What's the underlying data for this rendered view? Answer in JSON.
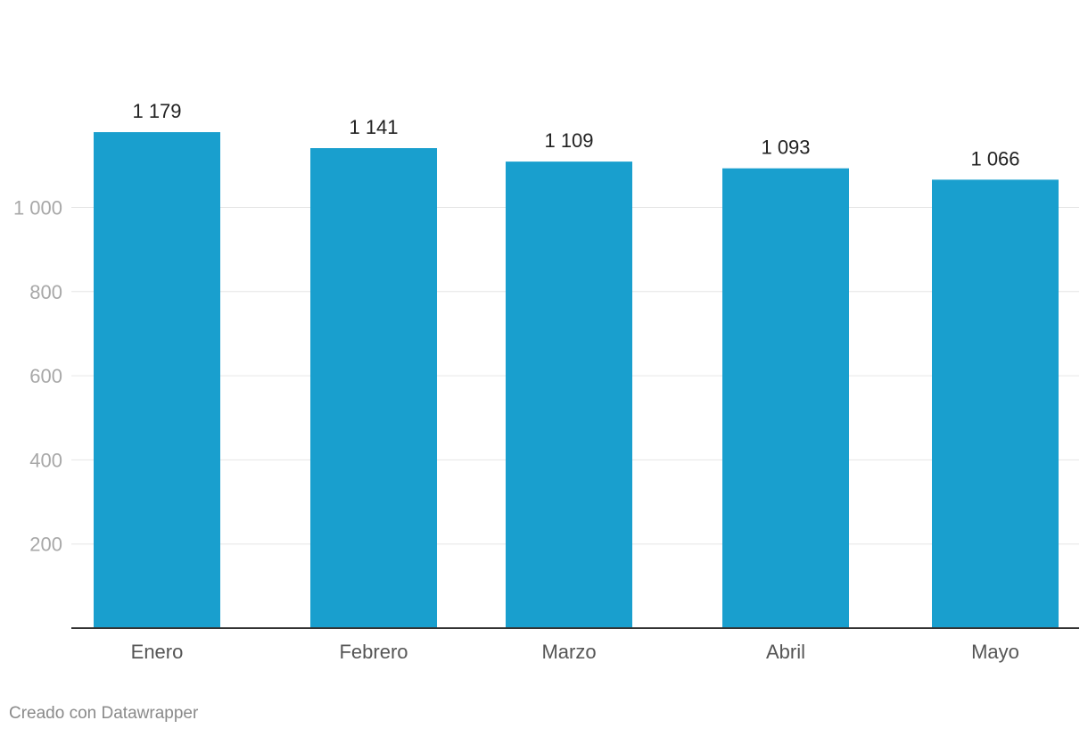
{
  "chart_data": {
    "type": "bar",
    "categories": [
      "Enero",
      "Febrero",
      "Marzo",
      "Abril",
      "Mayo"
    ],
    "values": [
      1179,
      1141,
      1109,
      1093,
      1066
    ],
    "value_labels": [
      "1 179",
      "1 141",
      "1 109",
      "1 093",
      "1 066"
    ],
    "title": "",
    "xlabel": "",
    "ylabel": "",
    "ylim": [
      0,
      1179
    ],
    "yticks": [
      200,
      400,
      600,
      800,
      1000
    ],
    "ytick_labels": [
      "200",
      "400",
      "600",
      "800",
      "1 000"
    ],
    "grid": true,
    "bar_color": "#199fce"
  },
  "footer": {
    "credit": "Creado con Datawrapper"
  }
}
